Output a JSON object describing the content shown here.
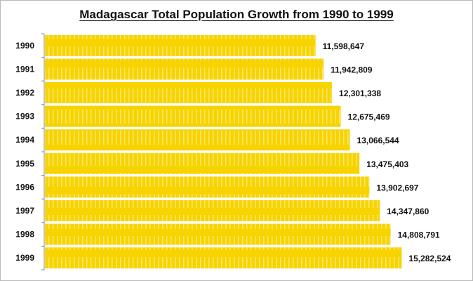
{
  "chart_data": {
    "type": "bar",
    "orientation": "horizontal",
    "title": "Madagascar  Total Population Growth from 1990 to 1999",
    "xlabel": "",
    "ylabel": "",
    "categories": [
      "1990",
      "1991",
      "1992",
      "1993",
      "1994",
      "1995",
      "1996",
      "1997",
      "1998",
      "1999"
    ],
    "values": [
      11598647,
      11942809,
      12301338,
      12675469,
      13066544,
      13475403,
      13902697,
      14347860,
      14808791,
      15282524
    ],
    "data_labels": [
      "11,598,647",
      "11,942,809",
      "12,301,338",
      "12,675,469",
      "13,066,544",
      "13,475,403",
      "13,902,697",
      "14,347,860",
      "14,808,791",
      "15,282,524"
    ],
    "xlim": [
      0,
      18000000
    ],
    "grid": false,
    "legend": "none",
    "colors": {
      "bar": "#f7d300",
      "bar_stripe": "#fbe76a",
      "label": "#111111",
      "axis": "#888888"
    }
  }
}
